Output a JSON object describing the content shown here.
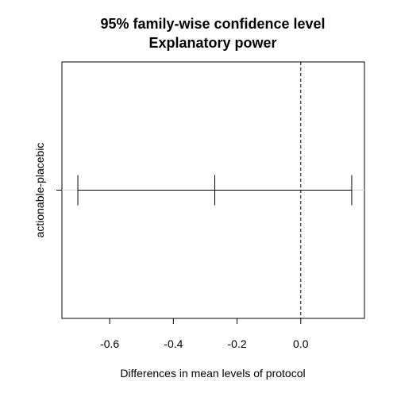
{
  "chart_data": {
    "type": "interval",
    "title": "95% family-wise confidence level",
    "subtitle": "Explanatory power",
    "xlabel": "Differences in mean levels of protocol",
    "ylabel": "",
    "xlim": [
      -0.75,
      0.2
    ],
    "xticks": [
      -0.6,
      -0.4,
      -0.2,
      0.0
    ],
    "xtick_labels": [
      "-0.6",
      "-0.4",
      "-0.2",
      "0.0"
    ],
    "reference_line": 0.0,
    "grid": false,
    "intervals": [
      {
        "label": "actionable-placebic",
        "lwr": -0.7,
        "diff": -0.27,
        "upr": 0.16
      }
    ]
  }
}
